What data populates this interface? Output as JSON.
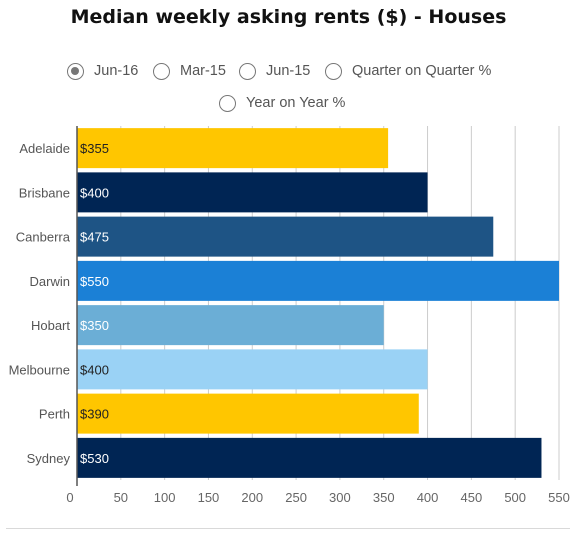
{
  "title": "Median weekly asking rents ($) - Houses",
  "options": [
    {
      "label": "Jun-16",
      "selected": true
    },
    {
      "label": "Mar-15",
      "selected": false
    },
    {
      "label": "Jun-15",
      "selected": false
    },
    {
      "label": "Quarter on Quarter %",
      "selected": false
    },
    {
      "label": "Year on Year %",
      "selected": false
    }
  ],
  "chart_data": {
    "type": "bar",
    "orientation": "horizontal",
    "categories": [
      "Adelaide",
      "Brisbane",
      "Canberra",
      "Darwin",
      "Hobart",
      "Melbourne",
      "Perth",
      "Sydney"
    ],
    "values": [
      355,
      400,
      475,
      550,
      350,
      400,
      390,
      530
    ],
    "data_labels": [
      "$355",
      "$400",
      "$475",
      "$550",
      "$350",
      "$400",
      "$390",
      "$530"
    ],
    "colors": [
      "#FFC600",
      "#002554",
      "#1E5485",
      "#1B80D6",
      "#6BAED6",
      "#9AD2F5",
      "#FFC600",
      "#002554"
    ],
    "label_colors": [
      "#222222",
      "#ffffff",
      "#ffffff",
      "#ffffff",
      "#ffffff",
      "#222222",
      "#222222",
      "#ffffff"
    ],
    "x_ticks": [
      0,
      50,
      100,
      150,
      200,
      250,
      300,
      350,
      400,
      450,
      500,
      550
    ],
    "xlim": [
      0,
      550
    ],
    "grid": true,
    "gridline_color": "#cccccc",
    "xlabel": "",
    "ylabel": ""
  }
}
